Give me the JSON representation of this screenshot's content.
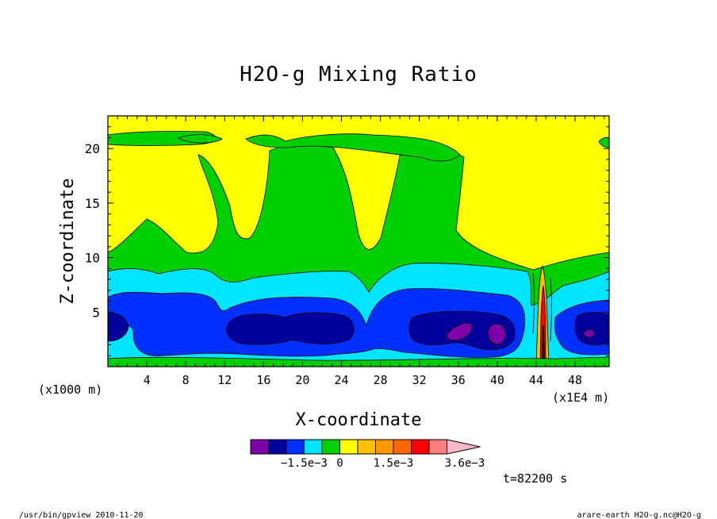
{
  "chart_data": {
    "type": "heatmap",
    "title": "H2O-g Mixing Ratio",
    "xlabel": "X-coordinate",
    "ylabel": "Z-coordinate",
    "x_unit": "(x1000 m)",
    "x_scale_note": "(x1E4 m)",
    "xlim": [
      0,
      51.5
    ],
    "ylim": [
      0,
      23
    ],
    "x_ticks": [
      4,
      8,
      12,
      16,
      20,
      24,
      28,
      32,
      36,
      40,
      44,
      48
    ],
    "y_ticks": [
      5,
      10,
      15,
      20
    ],
    "colorbar": {
      "levels": [
        -0.0021,
        -0.0018,
        -0.0015,
        -0.0012,
        -0.0009,
        -0.0006,
        -0.0003,
        0,
        0.0003,
        0.0006,
        0.0009,
        0.0012,
        0.0015
      ],
      "colors": [
        "#7f00a8",
        "#00009c",
        "#0030ff",
        "#00e5ff",
        "#00d000",
        "#ffff00",
        "#ffc000",
        "#ff9800",
        "#ff6800",
        "#ff0000",
        "#ff7d7d",
        "#ffb8c8"
      ],
      "tick_labels": [
        "−1.5e−3",
        "0",
        "1.5e−3",
        "3.6e−3"
      ]
    },
    "time_label": "t=82200 s"
  },
  "footer": {
    "left": "/usr/bin/gpview  2010-11-20",
    "right": "arare-earth_H2O-g.nc@H2O-g"
  }
}
